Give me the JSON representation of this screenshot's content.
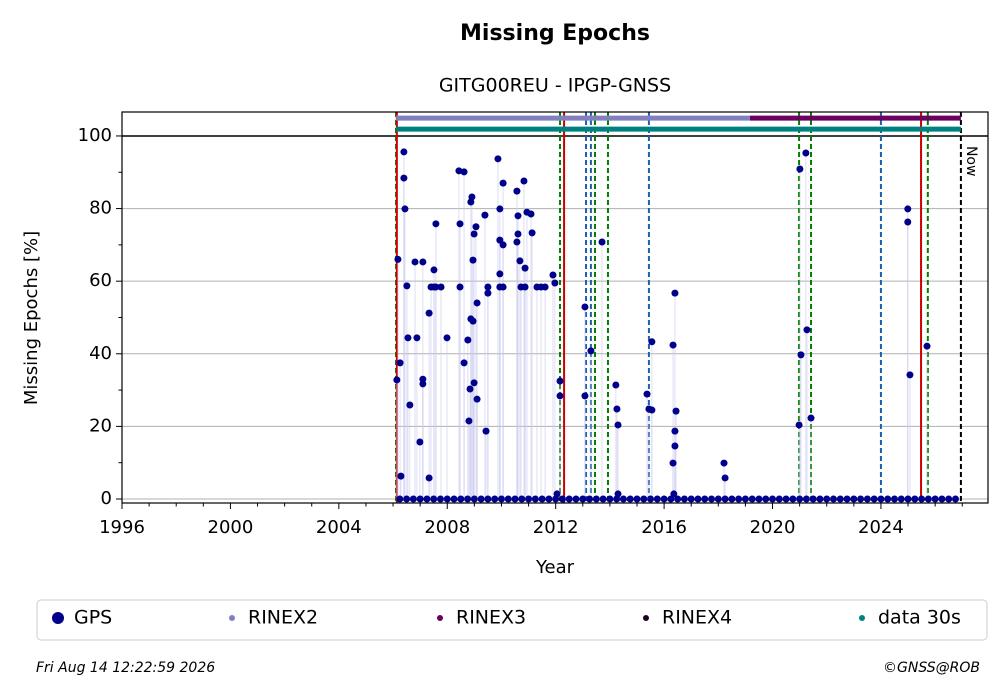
{
  "chart_data": {
    "type": "scatter",
    "title": "Missing Epochs",
    "subtitle": "GITG00REU - IPGP-GNSS",
    "xlabel": "Year",
    "ylabel": "Missing Epochs [%]",
    "xlim": [
      1996,
      2027.95
    ],
    "ylim": [
      -1.1,
      106.6
    ],
    "xticks": [
      1996,
      2000,
      2004,
      2008,
      2012,
      2016,
      2020,
      2024
    ],
    "xminorticks": [
      1997,
      1998,
      1999,
      2001,
      2002,
      2003,
      2005,
      2006,
      2007,
      2009,
      2010,
      2011,
      2013,
      2014,
      2015,
      2017,
      2018,
      2019,
      2021,
      2022,
      2023,
      2025,
      2026,
      2027
    ],
    "yticks": [
      0,
      20,
      40,
      60,
      80,
      100
    ],
    "yminorticks": [
      10,
      30,
      50,
      70,
      90
    ],
    "grid": "y",
    "hline": 100,
    "annotation": "Now",
    "vlines": [
      {
        "x": 2006.11,
        "color": "#008000",
        "style": "dashed"
      },
      {
        "x": 2006.14,
        "color": "#cc0000",
        "style": "solid"
      },
      {
        "x": 2012.16,
        "color": "#008000",
        "style": "dashed"
      },
      {
        "x": 2012.31,
        "color": "#cc0000",
        "style": "solid"
      },
      {
        "x": 2013.12,
        "color": "#1f5fb0",
        "style": "dashed"
      },
      {
        "x": 2013.3,
        "color": "#1f5fb0",
        "style": "dashed"
      },
      {
        "x": 2013.45,
        "color": "#008000",
        "style": "dashed"
      },
      {
        "x": 2013.93,
        "color": "#008000",
        "style": "dashed"
      },
      {
        "x": 2015.44,
        "color": "#1f5fb0",
        "style": "dashed"
      },
      {
        "x": 2020.98,
        "color": "#008000",
        "style": "dashed"
      },
      {
        "x": 2021.42,
        "color": "#008000",
        "style": "dashed"
      },
      {
        "x": 2024.0,
        "color": "#1f5fb0",
        "style": "dashed"
      },
      {
        "x": 2025.48,
        "color": "#cc0000",
        "style": "solid"
      },
      {
        "x": 2025.73,
        "color": "#008000",
        "style": "dashed"
      },
      {
        "x": 2026.95,
        "color": "#000000",
        "style": "dashed"
      }
    ],
    "series": [
      {
        "name": "GPS",
        "color": "#00008b",
        "marker": "large",
        "x": [
          2006.25,
          2006.5,
          2006.75,
          2007,
          2007.25,
          2007.5,
          2007.75,
          2008,
          2008.25,
          2008.5,
          2008.75,
          2009,
          2009.25,
          2009.5,
          2009.75,
          2010,
          2010.25,
          2010.5,
          2010.75,
          2011,
          2011.25,
          2011.5,
          2011.75,
          2012,
          2012.25,
          2012.5,
          2012.75,
          2013,
          2013.25,
          2013.5,
          2013.75,
          2014,
          2014.25,
          2014.5,
          2014.75,
          2015,
          2015.25,
          2015.5,
          2015.75,
          2016,
          2016.25,
          2016.5,
          2016.75,
          2017,
          2017.25,
          2017.5,
          2017.75,
          2018,
          2018.25,
          2018.5,
          2018.75,
          2019,
          2019.25,
          2019.5,
          2019.75,
          2020,
          2020.25,
          2020.5,
          2020.75,
          2021,
          2021.25,
          2021.5,
          2021.75,
          2022,
          2022.25,
          2022.5,
          2022.75,
          2023,
          2023.25,
          2023.5,
          2023.75,
          2024,
          2024.25,
          2024.5,
          2024.75,
          2025,
          2025.25,
          2025.5,
          2025.75,
          2026,
          2026.25,
          2026.5,
          2026.75,
          2006.14,
          2006.18,
          2006.26,
          2006.29,
          2006.4,
          2006.4,
          2006.44,
          2006.51,
          2006.55,
          2006.62,
          2006.81,
          2006.88,
          2006.99,
          2007.1,
          2007.1,
          2007.1,
          2007.33,
          2007.33,
          2007.4,
          2007.51,
          2007.51,
          2007.58,
          2007.58,
          2007.77,
          2007.99,
          2008.43,
          2008.47,
          2008.47,
          2008.62,
          2008.62,
          2008.76,
          2008.8,
          2008.84,
          2008.87,
          2008.87,
          2008.91,
          2008.95,
          2008.95,
          2008.99,
          2008.99,
          2009.06,
          2009.1,
          2009.1,
          2009.39,
          2009.43,
          2009.5,
          2009.5,
          2009.87,
          2009.94,
          2009.94,
          2009.94,
          2009.94,
          2010.06,
          2010.06,
          2010.06,
          2010.57,
          2010.57,
          2010.61,
          2010.61,
          2010.68,
          2010.72,
          2010.83,
          2010.87,
          2010.87,
          2010.94,
          2011.09,
          2011.13,
          2011.31,
          2011.46,
          2011.61,
          2011.9,
          2011.97,
          2012.05,
          2012.16,
          2012.16,
          2013.08,
          2013.08,
          2013.3,
          2013.71,
          2014.22,
          2014.26,
          2014.3,
          2014.3,
          2015.37,
          2015.44,
          2015.55,
          2015.55,
          2016.33,
          2016.36,
          2016.4,
          2016.4,
          2016.4,
          2016.44,
          2016.33,
          2018.21,
          2018.25,
          2021.01,
          2021.05,
          2021.23,
          2021.27,
          2021.42,
          2020.98,
          2024.99,
          2024.99,
          2025.07,
          2025.7
        ],
        "values": [
          0,
          0,
          0,
          0,
          0,
          0,
          0,
          0,
          0,
          0,
          0,
          0,
          0,
          0,
          0,
          0,
          0,
          0,
          0,
          0,
          0,
          0,
          0,
          0,
          0,
          0,
          0,
          0,
          0,
          0,
          0,
          0,
          0,
          0,
          0,
          0,
          0,
          0,
          0,
          0,
          0,
          0,
          0,
          0,
          0,
          0,
          0,
          0,
          0,
          0,
          0,
          0,
          0,
          0,
          0,
          0,
          0,
          0,
          0,
          0,
          0,
          0,
          0,
          0,
          0,
          0,
          0,
          0,
          0,
          0,
          0,
          0,
          0,
          0,
          0,
          0,
          0,
          0,
          0,
          0,
          0,
          0,
          0,
          32.8,
          66,
          37.5,
          6.3,
          95.6,
          88.4,
          79.9,
          58.7,
          44.4,
          25.9,
          65.3,
          44.4,
          15.7,
          65.3,
          33,
          31.7,
          51.2,
          5.8,
          58.4,
          58.4,
          63.1,
          75.8,
          58.4,
          58.4,
          44.4,
          90.4,
          58.4,
          75.8,
          90.1,
          37.5,
          43.8,
          21.5,
          30.3,
          81.8,
          49.6,
          83.2,
          65.8,
          49,
          73,
          32,
          75,
          27.5,
          54,
          78.2,
          18.7,
          56.7,
          58.4,
          93.7,
          79.9,
          71.3,
          58.4,
          62,
          70,
          87,
          58.4,
          84.8,
          70.8,
          73,
          78,
          65.6,
          58.4,
          87.6,
          63.6,
          58.4,
          79,
          78.5,
          73.3,
          58.4,
          58.4,
          58.4,
          61.7,
          59.5,
          1.4,
          32.5,
          28.4,
          52.9,
          28.4,
          40.8,
          70.8,
          31.4,
          24.8,
          20.4,
          1.4,
          28.9,
          24.8,
          24.5,
          43.3,
          42.4,
          1.4,
          56.7,
          14.6,
          18.7,
          24.2,
          9.9,
          9.9,
          5.8,
          90.9,
          39.7,
          95.3,
          46.6,
          22.3,
          20.4,
          79.9,
          76.3,
          34.2,
          42.1
        ]
      },
      {
        "name": "RINEX2",
        "color": "#8080c0",
        "marker": "small",
        "x": [
          2006.11,
          2019.17
        ],
        "values": [
          104.9,
          104.9
        ]
      },
      {
        "name": "RINEX3",
        "color": "#6a0060",
        "marker": "small",
        "x": [
          2019.17,
          2026.95
        ],
        "values": [
          104.9,
          104.9
        ]
      },
      {
        "name": "RINEX4",
        "color": "#200020",
        "marker": "small",
        "x": [],
        "values": []
      },
      {
        "name": "data 30s",
        "color": "#008080",
        "marker": "small",
        "x": [
          2006.11,
          2026.95
        ],
        "values": [
          101.9,
          101.9
        ]
      }
    ],
    "footer_left": "Fri Aug 14 12:22:59 2026",
    "footer_right": "©GNSS@ROB"
  }
}
